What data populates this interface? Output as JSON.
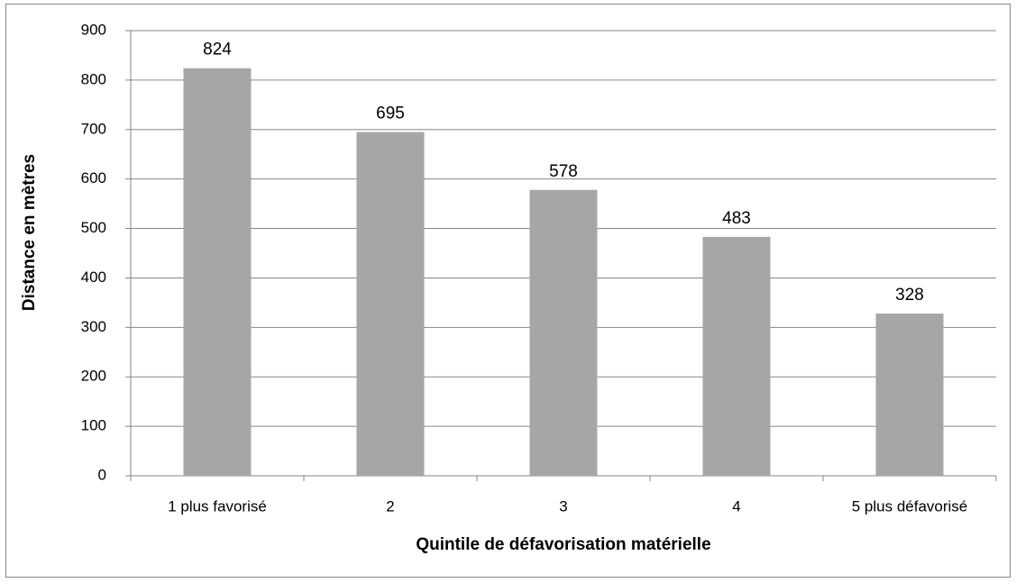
{
  "chart_data": {
    "type": "bar",
    "x_label": "Quintile de défavorisation  matérielle",
    "y_label": "Distance en mètres",
    "categories": [
      "1 plus favorisé",
      "2",
      "3",
      "4",
      "5 plus défavorisé"
    ],
    "values": [
      824,
      695,
      578,
      483,
      328
    ],
    "color": "#a6a6a6",
    "ylim": [
      0,
      900
    ],
    "yticks": [
      0,
      100,
      200,
      300,
      400,
      500,
      600,
      700,
      800,
      900
    ],
    "grid": true
  }
}
